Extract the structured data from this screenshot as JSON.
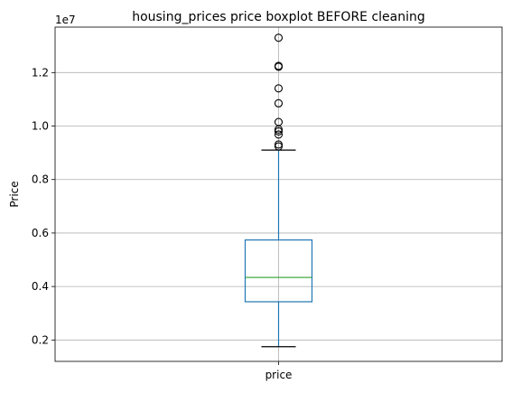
{
  "chart_data": {
    "type": "boxplot",
    "title": "housing_prices price boxplot BEFORE cleaning",
    "xlabel": "",
    "ylabel": "Price",
    "offset_label": "1e7",
    "scale": 10000000,
    "ylim": [
      1200000,
      13700000
    ],
    "yticks": [
      2000000,
      4000000,
      6000000,
      8000000,
      10000000,
      12000000
    ],
    "ytick_labels": [
      "0.2",
      "0.4",
      "0.6",
      "0.8",
      "1.0",
      "1.2"
    ],
    "grid": true,
    "categories": [
      "price"
    ],
    "boxes": [
      {
        "name": "price",
        "whisker_low": 1750000,
        "q1": 3430000,
        "median": 4340000,
        "q3": 5740000,
        "whisker_high": 9100000,
        "outliers": [
          13300000,
          12250000,
          12215000,
          11410000,
          10850000,
          10150000,
          9870000,
          9800000,
          9681000,
          9310000,
          9240000
        ]
      }
    ],
    "colors": {
      "box": "#1f77b4",
      "median": "#2ca02c",
      "grid": "#b0b0b0",
      "outlier": "#000000"
    }
  }
}
